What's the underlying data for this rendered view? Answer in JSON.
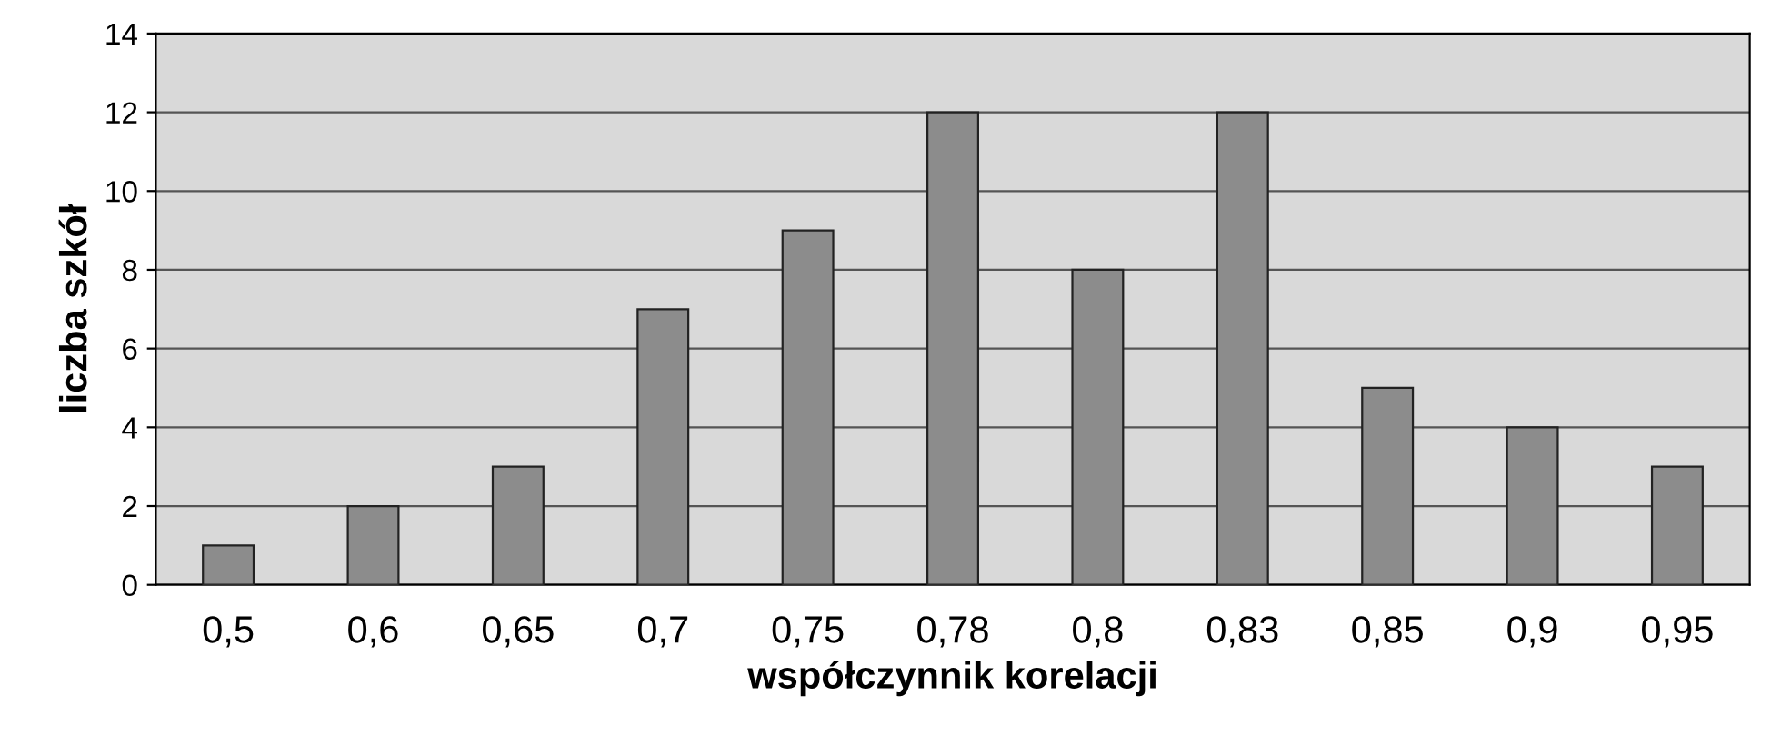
{
  "chart_data": {
    "type": "bar",
    "xlabel": "współczynnik korelacji",
    "ylabel": "liczba szkół",
    "categories": [
      "0,5",
      "0,6",
      "0,65",
      "0,7",
      "0,75",
      "0,78",
      "0,8",
      "0,83",
      "0,85",
      "0,9",
      "0,95"
    ],
    "values": [
      1,
      2,
      3,
      7,
      9,
      12,
      8,
      12,
      5,
      4,
      3
    ],
    "color": "#8c8c8c",
    "ylim": [
      0,
      14
    ],
    "yticks": [
      0,
      2,
      4,
      6,
      8,
      10,
      12,
      14
    ],
    "grid": "y",
    "legend": false
  }
}
